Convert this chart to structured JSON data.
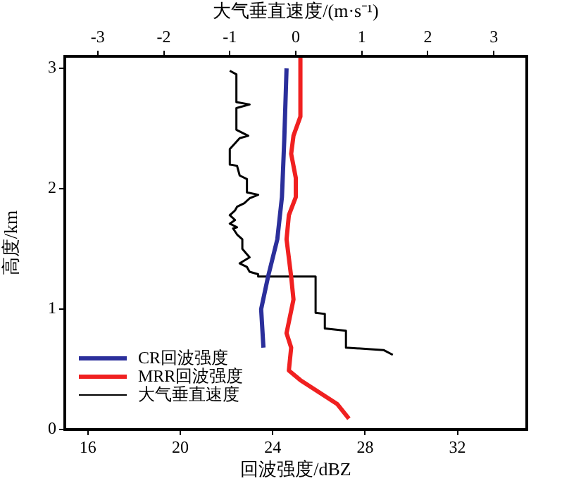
{
  "chart_data": {
    "type": "line",
    "orientation": "horizontal",
    "xlabel": "回波强度/dBZ",
    "x2label": "大气垂直速度/(m·s⁻¹)",
    "ylabel": "高度/km",
    "xlim": [
      15,
      35
    ],
    "xticks": [
      16,
      20,
      24,
      28,
      32
    ],
    "x2lim": [
      -3.5,
      3.5
    ],
    "x2ticks": [
      -3,
      -2,
      -1,
      0,
      1,
      2,
      3
    ],
    "ylim": [
      0,
      3.1
    ],
    "yticks": [
      0,
      1,
      2,
      3
    ],
    "grid": false,
    "legend": "bottom left",
    "marker": "none",
    "line_style": "solid",
    "series": [
      {
        "name": "CR回波强度",
        "color": "#2b2f9b",
        "x": [
          3.0,
          2.4,
          1.93,
          1.58,
          1.27,
          1.0,
          0.68
        ],
        "values": [
          24.6,
          24.5,
          24.4,
          24.2,
          23.8,
          23.5,
          23.6
        ]
      },
      {
        "name": "MRR回波强度",
        "color": "#f02020",
        "x": [
          3.09,
          2.6,
          2.44,
          2.29,
          2.09,
          1.93,
          1.78,
          1.58,
          1.27,
          1.08,
          0.8,
          0.68,
          0.49,
          0.41,
          0.21,
          0.09
        ],
        "values": [
          25.2,
          25.2,
          24.9,
          24.8,
          25.0,
          25.0,
          24.7,
          24.6,
          24.8,
          24.9,
          24.6,
          24.8,
          24.7,
          25.2,
          26.8,
          27.3
        ]
      },
      {
        "name": "大气垂直速度",
        "color": "#000000",
        "axis": "x2",
        "x": [
          2.98,
          2.95,
          2.72,
          2.7,
          2.67,
          2.49,
          2.44,
          2.42,
          2.33,
          2.2,
          2.19,
          2.11,
          2.08,
          1.97,
          1.95,
          1.92,
          1.88,
          1.85,
          1.82,
          1.78,
          1.74,
          1.71,
          1.68,
          1.67,
          1.62,
          1.58,
          1.5,
          1.43,
          1.38,
          1.35,
          1.31,
          1.29,
          1.27,
          1.27,
          0.97,
          0.96,
          0.84,
          0.82,
          0.68,
          0.66,
          0.62
        ],
        "values": [
          -1.0,
          -0.9,
          -0.9,
          -0.7,
          -0.9,
          -0.9,
          -0.72,
          -0.85,
          -1.0,
          -1.0,
          -0.89,
          -0.85,
          -0.74,
          -0.74,
          -0.57,
          -0.7,
          -0.78,
          -0.89,
          -0.92,
          -1.0,
          -0.92,
          -1.0,
          -0.89,
          -0.95,
          -0.89,
          -0.81,
          -0.81,
          -0.7,
          -0.85,
          -0.74,
          -0.7,
          -0.57,
          -0.57,
          0.3,
          0.3,
          0.44,
          0.44,
          0.76,
          0.76,
          1.33,
          1.47
        ]
      }
    ]
  }
}
